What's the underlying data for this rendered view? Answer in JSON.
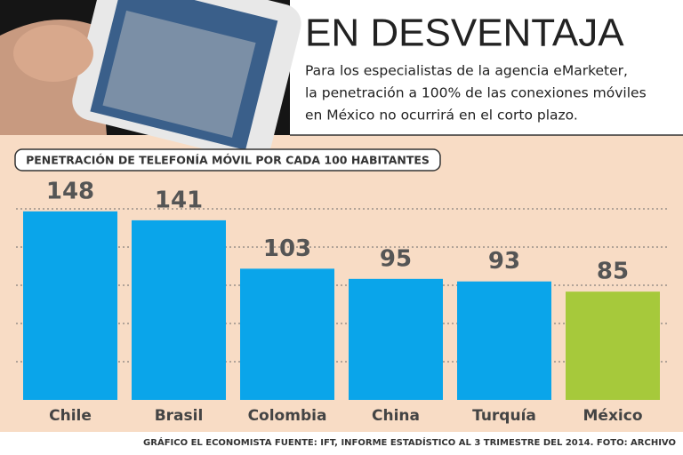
{
  "header": {
    "title": "EN DESVENTAJA",
    "subtitle": [
      "Para los especialistas de la agencia eMarketer,",
      "la penetración a 100% de las conexiones móviles",
      "en México no ocurrirá en el corto plazo."
    ]
  },
  "chart_data": {
    "type": "bar",
    "title": "PENETRACIÓN DE TELEFONÍA MÓVIL POR CADA 100 HABITANTES",
    "categories": [
      "Chile",
      "Brasil",
      "Colombia",
      "China",
      "Turquía",
      "México"
    ],
    "values": [
      148,
      141,
      103,
      95,
      93,
      85
    ],
    "colors": [
      "#0aa5ea",
      "#0aa5ea",
      "#0aa5ea",
      "#0aa5ea",
      "#0aa5ea",
      "#a6c93b"
    ],
    "ylim": [
      0,
      150
    ],
    "yticks": [
      30,
      60,
      90,
      120,
      150
    ],
    "grid": true
  },
  "footer": {
    "source": "GRÁFICO EL ECONOMISTA FUENTE: IFT, INFORME ESTADÍSTICO AL 3 TRIMESTRE DEL 2014. FOTO: ARCHIVO"
  }
}
